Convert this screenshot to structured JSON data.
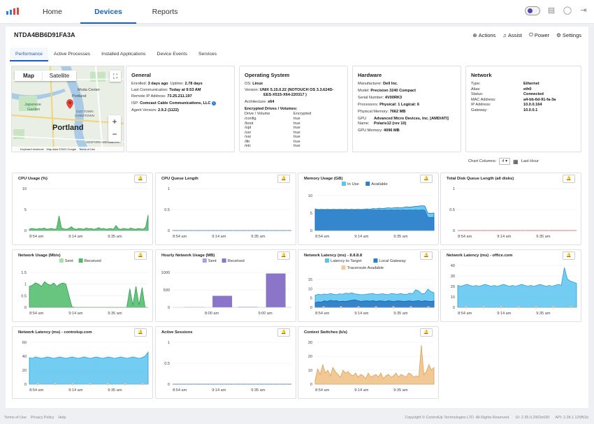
{
  "nav": {
    "tabs": [
      {
        "label": "Home"
      },
      {
        "label": "Devices"
      },
      {
        "label": "Reports"
      }
    ]
  },
  "colors": {
    "accent": "#1a5fb4",
    "cpu_green": "#4dbb6a",
    "queue_blue": "#1a5fb4",
    "memory_blue": "#5bc4f0",
    "memory_dark": "#2f7fc8",
    "disk_red": "#e0435b",
    "net_sent": "#a8e0a8",
    "net_received": "#4dbb6a",
    "hourly_sent": "#a89ee0",
    "hourly_received": "#8b75c8",
    "latency_target": "#5bc4f0",
    "latency_gateway": "#2f7fc8",
    "traceroute": "#f5c99a",
    "context": "#f1c38a"
  },
  "device": {
    "name": "NTDA4BB6D91FA3A",
    "actions": [
      {
        "label": "Actions",
        "icon": "plus-circle-icon"
      },
      {
        "label": "Assist",
        "icon": "headset-icon"
      },
      {
        "label": "Power",
        "icon": "power-icon"
      },
      {
        "label": "Settings",
        "icon": "gear-icon"
      }
    ],
    "tabs": [
      "Performance",
      "Active Processes",
      "Installed Applications",
      "Device Events",
      "Services"
    ]
  },
  "map": {
    "btn_map": "Map",
    "btn_satellite": "Satellite",
    "city": "Portland",
    "labels": [
      "Moda Center",
      "Portland",
      "Japanese",
      "Garden",
      "OLD TOWN",
      "CHINATOWN",
      "HOSFORD-ABERNETHY"
    ],
    "footer": [
      "Keyboard shortcuts",
      "Map data ©2022 Google",
      "Terms of Use"
    ]
  },
  "general": {
    "title": "General",
    "enrolled_label": "Enrolled:",
    "enrolled": "3 days ago",
    "uptime_label": "Uptime:",
    "uptime": "2.78 days",
    "last_comm_label": "Last Communication:",
    "last_comm": "Today at 9:53 AM",
    "remote_ip_label": "Remote IP Address:",
    "remote_ip": "73.25.211.197",
    "isp_label": "ISP:",
    "isp": "Comcast Cable Communications, LLC",
    "agent_label": "Agent Version:",
    "agent": "2.9.2 (1122)"
  },
  "os": {
    "title": "Operating System",
    "os_label": "OS:",
    "os": "Linux",
    "version_label": "Version:",
    "version_line1": "UNIX 5.15.0.22 (NOTOUCH OS 3.3.624D-",
    "version_line2": "EES-X515-X64-220317 )",
    "arch_label": "Architecture:",
    "arch": "x64",
    "drives_title": "Encrypted Drives / Volumes:",
    "drives_col1": "Drive / Volume",
    "drives_col2": "Encrypted",
    "drives": [
      {
        "name": "/config",
        "enc": "true"
      },
      {
        "name": "/boot",
        "enc": "true"
      },
      {
        "name": "/opt",
        "enc": "true"
      },
      {
        "name": "/usr",
        "enc": "true"
      },
      {
        "name": "/var",
        "enc": "true"
      },
      {
        "name": "/lib",
        "enc": "true"
      },
      {
        "name": "/etc",
        "enc": "true"
      }
    ]
  },
  "hardware": {
    "title": "Hardware",
    "manufacturer_label": "Manufacturer:",
    "manufacturer": "Dell Inc.",
    "model_label": "Model:",
    "model": "Precision 3240 Compact",
    "serial_label": "Serial Number:",
    "serial": "4V00RK3",
    "proc_label": "Processors:",
    "proc": "Physical: 1  Logical: 6",
    "mem_label": "Physical Memory:",
    "mem": "7662 MB",
    "gpu_label1": "GPU",
    "gpu_label2": "Name:",
    "gpu_line1": "Advanced Micro Devices, Inc. [AMD/ATI]",
    "gpu_line2": "Polaris12 (rev 10)",
    "gpumem_label": "GPU Memory:",
    "gpumem": "4096 MB"
  },
  "network": {
    "title": "Network",
    "rows": [
      {
        "k": "Type:",
        "v": "Ethernet"
      },
      {
        "k": "Alias:",
        "v": "eth0"
      },
      {
        "k": "Status:",
        "v": "Connected"
      },
      {
        "k": "MAC Address:",
        "v": "a4-bb-6d-91-fa-3a"
      },
      {
        "k": "IP Address:",
        "v": "10.0.0.164"
      },
      {
        "k": "Gateway:",
        "v": "10.0.0.1"
      }
    ]
  },
  "chart_controls": {
    "columns_label": "Chart Columns:",
    "columns_value": "4",
    "range_label": "Last Hour"
  },
  "chart_data": [
    {
      "id": "cpu",
      "type": "area",
      "title": "CPU Usage (%)",
      "yticks": [
        "10",
        "5",
        "0"
      ],
      "ylim": [
        0,
        10
      ],
      "xticks": [
        "8:54 am",
        "9:14 am",
        "9:35 am"
      ],
      "series": [
        {
          "values": [
            0.3,
            0.5,
            0.4,
            0.3,
            0.5,
            0.4,
            0.6,
            0.3,
            0.4,
            0.5,
            0.3,
            0.4,
            3.5,
            0.6,
            0.4,
            0.3,
            0.5,
            0.9,
            0.4,
            0.3,
            0.5,
            0.4,
            0.3,
            0.6,
            0.4,
            0.5,
            0.3,
            0.4,
            0.7,
            0.4,
            0.5,
            0.3,
            0.4,
            0.5,
            0.3,
            1.2,
            0.4,
            0.3,
            0.5,
            0.4,
            0.3,
            0.6,
            0.4,
            0.3,
            0.5,
            0.4,
            0.3,
            0.8,
            3.7
          ]
        }
      ]
    },
    {
      "id": "queue",
      "type": "line",
      "title": "CPU Queue Length",
      "yticks": [
        "1",
        "0.5",
        "0"
      ],
      "ylim": [
        0,
        1
      ],
      "xticks": [
        "8:54 am",
        "9:14 am",
        "9:35 am"
      ],
      "series": [
        {
          "values": [
            0,
            0,
            0,
            0,
            0,
            0,
            0,
            0,
            0,
            0,
            0,
            0,
            0,
            0,
            0,
            0,
            0,
            0,
            0,
            0,
            0,
            0,
            0,
            0,
            0,
            0,
            0,
            0,
            0,
            0,
            0,
            0,
            0,
            0,
            0,
            0,
            0,
            0,
            0,
            0
          ]
        }
      ]
    },
    {
      "id": "memory",
      "type": "area",
      "title": "Memory Usage (GB)",
      "legend": [
        "In Use",
        "Available"
      ],
      "yticks": [
        "10",
        "5",
        "0"
      ],
      "ylim": [
        0,
        10
      ],
      "xticks": [
        "8:54 am",
        "9:14 am",
        "9:35 am"
      ],
      "series": [
        {
          "name": "In Use",
          "values": [
            6.2,
            6.0,
            6.1,
            6.0,
            6.1,
            6.0,
            6.1,
            6.0,
            6.1,
            6.0,
            6.1,
            6.0,
            6.1,
            6.0,
            6.1,
            6.0,
            6.1,
            6.2,
            6.1,
            6.3,
            6.2,
            6.4,
            6.3,
            6.4,
            6.5,
            6.4,
            6.5,
            6.6,
            6.5,
            6.6,
            6.8,
            6.7,
            6.8,
            6.9,
            7.0,
            7.1,
            7.0,
            5.0,
            4.9,
            5.0
          ]
        },
        {
          "name": "Available",
          "values": [
            5.8,
            5.9,
            5.8,
            5.9,
            5.8,
            5.9,
            5.8,
            5.9,
            5.8,
            5.9,
            5.8,
            5.9,
            5.8,
            5.9,
            5.8,
            5.9,
            5.8,
            5.9,
            5.8,
            5.9,
            5.8,
            5.9,
            5.8,
            5.9,
            5.8,
            5.9,
            5.8,
            5.9,
            5.8,
            5.9,
            5.8,
            5.9,
            5.8,
            5.9,
            5.8,
            5.9,
            5.8,
            3.8,
            3.7,
            3.8
          ]
        }
      ]
    },
    {
      "id": "disk",
      "type": "line",
      "title": "Total Disk Queue Length (all disks)",
      "yticks": [
        "1",
        "0.5",
        "0"
      ],
      "ylim": [
        0,
        1
      ],
      "xticks": [
        "8:54 am",
        "9:14 am",
        "9:35 am"
      ],
      "series": [
        {
          "values": [
            0,
            0,
            0,
            0,
            0,
            0,
            0,
            0,
            0,
            0,
            0,
            0,
            0,
            0,
            0,
            0,
            0,
            0,
            0,
            0,
            0,
            0,
            0,
            0,
            0,
            0,
            0,
            0,
            0,
            0,
            0,
            0,
            0,
            0,
            0,
            0,
            0,
            0,
            0,
            0
          ]
        }
      ]
    },
    {
      "id": "netusage",
      "type": "area",
      "title": "Network Usage (Mb/s)",
      "legend": [
        "Sent",
        "Received"
      ],
      "yticks": [
        "1.5",
        "1",
        "0.5",
        "0"
      ],
      "ylim": [
        0,
        1.5
      ],
      "xticks": [
        "8:54 am",
        "9:14 am",
        "9:35 am"
      ],
      "series": [
        {
          "name": "Received",
          "values": [
            0.9,
            0.95,
            1.05,
            1.0,
            0.9,
            1.1,
            1.0,
            0.95,
            1.05,
            0.9,
            1.0,
            1.05,
            1.0,
            0.5,
            0.02,
            0,
            0,
            0,
            0,
            0,
            0,
            0,
            0,
            0,
            0,
            0,
            0,
            0,
            0,
            0,
            0,
            0,
            0,
            0.8,
            0.1,
            0.9,
            0.1,
            0.85,
            0,
            0
          ]
        }
      ]
    },
    {
      "id": "hourly",
      "type": "bar",
      "title": "Hourly Network Usage (MB)",
      "legend": [
        "Sent",
        "Received"
      ],
      "yticks": [
        "1000",
        "500",
        "0"
      ],
      "ylim": [
        0,
        1000
      ],
      "xticks": [
        "8:00 am",
        "9:00 am"
      ],
      "categories": [
        "8:00 am",
        "9:00 am"
      ],
      "series": [
        {
          "name": "Sent",
          "values": [
            10,
            15
          ]
        },
        {
          "name": "Received",
          "values": [
            330,
            970
          ]
        }
      ]
    },
    {
      "id": "lat8888",
      "type": "area",
      "title": "Network Latency (ms) - 8.8.8.8",
      "legend": [
        "Latency to Target",
        "Local Gateway",
        "Traceroute Available"
      ],
      "yticks": [
        "15",
        "10",
        "5",
        "0"
      ],
      "ylim": [
        0,
        15
      ],
      "xticks": [
        "8:54 am",
        "9:14 am",
        "9:35 am"
      ],
      "series": [
        {
          "name": "Latency to Target",
          "values": [
            6.5,
            7,
            6.8,
            7.2,
            6.9,
            7.5,
            7,
            6.8,
            7.3,
            7.1,
            7.6,
            7.4,
            7.8,
            7.2,
            7,
            6.8,
            6.9,
            7.1,
            7.3,
            7.5,
            6.9,
            7.1,
            7.3,
            7,
            6.8,
            7.5,
            7.2,
            7,
            7.4,
            7.1,
            6.9,
            7.6,
            7.3,
            9.5,
            8.8,
            7.2,
            7.5,
            9.8,
            8.5,
            7.8
          ]
        },
        {
          "name": "Local Gateway",
          "values": [
            2.5,
            3,
            2.8,
            3.5,
            3.2,
            3.8,
            3.4,
            3.6,
            3.1,
            3.3,
            3.2,
            3.5,
            3.8,
            4,
            3.6,
            3.2,
            3.4,
            3.5,
            3.3,
            3.6,
            3.2,
            3.5,
            3.4,
            3.1,
            3.6,
            3.3,
            3.2,
            3.5,
            3.4,
            3.1,
            3.3,
            3.5,
            3.2,
            3.4,
            3.6,
            3.2,
            3.5,
            3.3,
            3.1,
            3.4
          ]
        }
      ]
    },
    {
      "id": "latoffice",
      "type": "area",
      "title": "Network Latency (ms) - office.com",
      "yticks": [
        "40",
        "30",
        "20",
        "10",
        "0"
      ],
      "ylim": [
        0,
        40
      ],
      "xticks": [
        "8:54 am",
        "9:14 am",
        "9:35 am"
      ],
      "series": [
        {
          "name": "Latency",
          "values": [
            21,
            20,
            21,
            22,
            21,
            20,
            21,
            20,
            21,
            22,
            21,
            20,
            21,
            20,
            21,
            22,
            21,
            20,
            21,
            20,
            21,
            22,
            21,
            20,
            21,
            20,
            21,
            22,
            21,
            20,
            21,
            20,
            21,
            22,
            21,
            38,
            27,
            25,
            24,
            23
          ]
        }
      ]
    },
    {
      "id": "latcontrolup",
      "type": "area",
      "title": "Network Latency (ms) - controlup.com",
      "yticks": [
        "60",
        "40",
        "20",
        "0"
      ],
      "ylim": [
        0,
        60
      ],
      "xticks": [
        "8:54 am",
        "9:14 am",
        "9:35 am"
      ],
      "series": [
        {
          "name": "Latency",
          "values": [
            38,
            37,
            39,
            38,
            37,
            38,
            39,
            38,
            37,
            38,
            39,
            38,
            37,
            38,
            39,
            38,
            37,
            38,
            39,
            38,
            37,
            38,
            39,
            38,
            37,
            38,
            39,
            38,
            37,
            38,
            39,
            38,
            37,
            38,
            39,
            38,
            37,
            38,
            40,
            46
          ]
        }
      ]
    },
    {
      "id": "sessions",
      "type": "line",
      "title": "Active Sessions",
      "yticks": [
        "1",
        "0.5",
        "0"
      ],
      "ylim": [
        0,
        1
      ],
      "xticks": [
        "8:54 am",
        "9:14 am",
        "9:35 am"
      ],
      "series": [
        {
          "values": [
            0,
            0,
            0,
            0,
            0,
            0,
            0,
            0,
            0,
            0,
            0,
            0,
            0,
            0,
            0,
            0,
            0,
            0,
            0,
            0,
            0,
            0,
            0,
            0,
            0,
            0,
            0,
            0,
            0,
            0,
            0,
            0,
            0,
            0,
            0,
            0,
            0,
            0,
            0,
            0
          ]
        }
      ]
    },
    {
      "id": "ctxswitch",
      "type": "area",
      "title": "Context Switches (k/s)",
      "yticks": [
        "30",
        "20",
        "10",
        "0"
      ],
      "ylim": [
        0,
        30
      ],
      "xticks": [
        "8:54 am",
        "9:14 am",
        "9:35 am"
      ],
      "series": [
        {
          "name": "Context Switches",
          "values": [
            3,
            11,
            7,
            14,
            8,
            10,
            6,
            12,
            9,
            7,
            5,
            10,
            8,
            9,
            7,
            6,
            8,
            5,
            7,
            6,
            4,
            8,
            5,
            6,
            7,
            5,
            8,
            4,
            6,
            7,
            5,
            6,
            8,
            5,
            7,
            6,
            5,
            8,
            7,
            5,
            6,
            5,
            28,
            7,
            9,
            14,
            10,
            12
          ]
        }
      ]
    }
  ],
  "footer": {
    "links": [
      "Terms of Use",
      "Privacy Policy",
      "Help"
    ],
    "copyright": "Copyright © ControlUp Technologies LTD. All Rights Reserved.",
    "ui_version": "UI: 2.35.0.2902e030",
    "api_version": "API: 2.28.1.125f61b"
  }
}
